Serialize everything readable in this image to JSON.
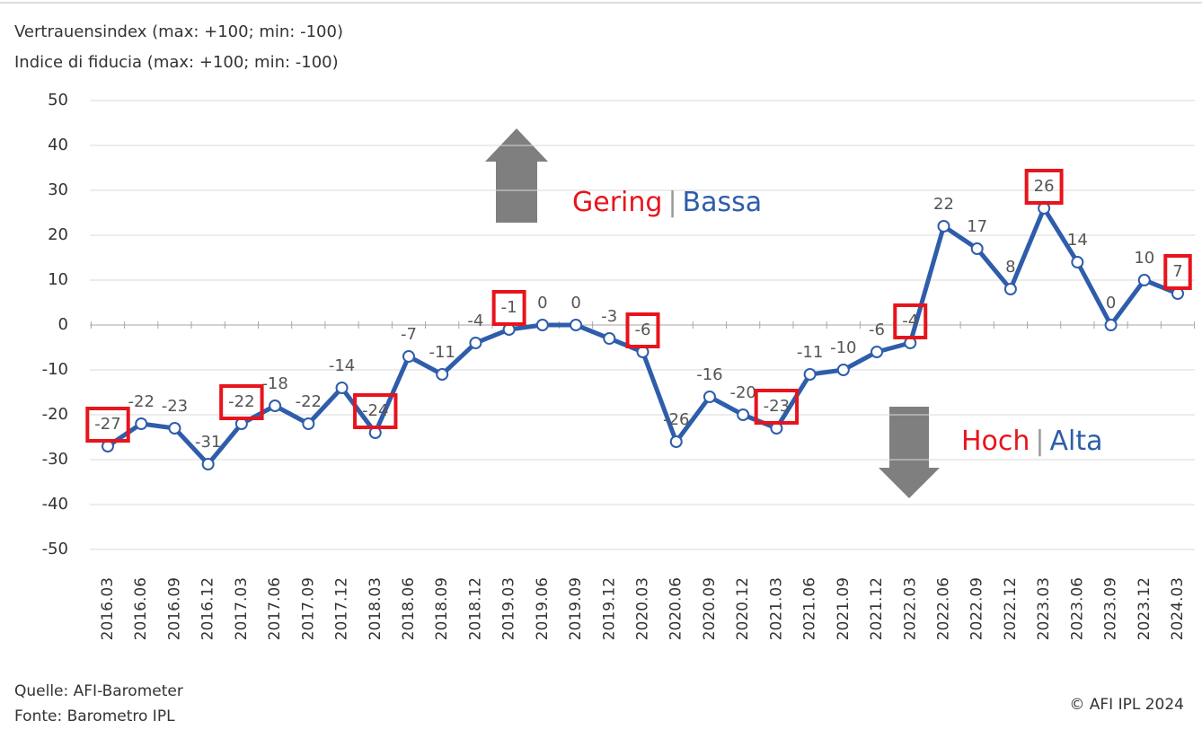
{
  "chart_data": {
    "type": "line",
    "title": "Vertrauensindex (max: +100; min: -100)",
    "subtitle": "Indice di fiducia (max: +100; min: -100)",
    "categories": [
      "2016.03",
      "2016.06",
      "2016.09",
      "2016.12",
      "2017.03",
      "2017.06",
      "2017.09",
      "2017.12",
      "2018.03",
      "2018.06",
      "2018.09",
      "2018.12",
      "2019.03",
      "2019.06",
      "2019.09",
      "2019.12",
      "2020.03",
      "2020.06",
      "2020.09",
      "2020.12",
      "2021.03",
      "2021.06",
      "2021.09",
      "2021.12",
      "2022.03",
      "2022.06",
      "2022.09",
      "2022.12",
      "2023.03",
      "2023.06",
      "2023.09",
      "2023.12",
      "2024.03"
    ],
    "values": [
      -27,
      -22,
      -23,
      -31,
      -22,
      -18,
      -22,
      -14,
      -24,
      -7,
      -11,
      -4,
      -1,
      0,
      0,
      -3,
      -6,
      -26,
      -16,
      -20,
      -23,
      -11,
      -10,
      -6,
      -4,
      22,
      17,
      8,
      26,
      14,
      0,
      10,
      7
    ],
    "color": "#2e5dab",
    "highlighted_points": [
      0,
      4,
      8,
      12,
      16,
      20,
      24,
      28,
      32
    ],
    "highlight_color": "#e8141c",
    "ylim": [
      -50,
      50
    ],
    "yticks": [
      -50,
      -40,
      -30,
      -20,
      -10,
      0,
      10,
      20,
      30,
      40,
      50
    ],
    "grid": true,
    "annotations": {
      "up": [
        "Gering",
        "|",
        "Bassa"
      ],
      "down": [
        "Hoch",
        "|",
        "Alta"
      ]
    },
    "source": [
      "Quelle: AFI-Barometer",
      "Fonte: Barometro IPL"
    ],
    "copyright": "© AFI IPL 2024"
  }
}
